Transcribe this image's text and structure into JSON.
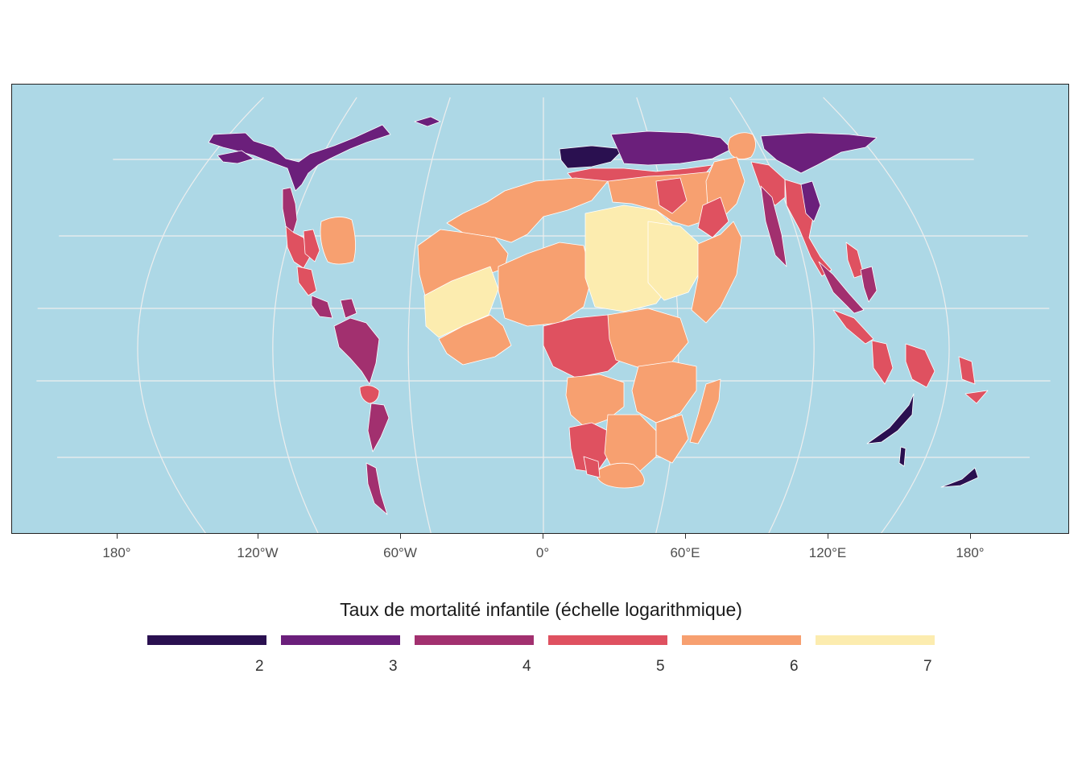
{
  "map": {
    "ocean_color": "#ADD8E6",
    "graticule_color": "#EEEEEE",
    "border_color": "#FFFFFF",
    "x_axis_labels": [
      "180°",
      "120°W",
      "60°W",
      "0°",
      "60°E",
      "120°E",
      "180°"
    ]
  },
  "legend": {
    "title": "Taux de mortalité infantile (échelle logarithmique)",
    "scale": "log",
    "palette": "magma",
    "bins": [
      {
        "color": "#2A1050",
        "label": "2"
      },
      {
        "color": "#6B1F7B",
        "label": "3"
      },
      {
        "color": "#A2306F",
        "label": "4"
      },
      {
        "color": "#DF5160",
        "label": "5"
      },
      {
        "color": "#F7A070",
        "label": "6"
      },
      {
        "color": "#FCECAF",
        "label": "7"
      }
    ]
  },
  "regions": [
    {
      "name": "north-america-arctic",
      "value": 3
    },
    {
      "name": "north-america-central",
      "value": 3
    },
    {
      "name": "mexico",
      "value": 4
    },
    {
      "name": "central-america",
      "value": 5
    },
    {
      "name": "south-america",
      "value": 4
    },
    {
      "name": "europe-west",
      "value": 2
    },
    {
      "name": "europe-east-russia",
      "value": 3
    },
    {
      "name": "north-africa",
      "value": 5
    },
    {
      "name": "west-africa",
      "value": 6
    },
    {
      "name": "sahel-west",
      "value": 7
    },
    {
      "name": "central-africa",
      "value": 6
    },
    {
      "name": "east-africa",
      "value": 6
    },
    {
      "name": "southern-africa",
      "value": 5
    },
    {
      "name": "madagascar",
      "value": 6
    },
    {
      "name": "south-asia",
      "value": 6
    },
    {
      "name": "southeast-asia",
      "value": 5
    },
    {
      "name": "oceania-melanesia",
      "value": 5
    },
    {
      "name": "australia-nz",
      "value": 2
    }
  ]
}
